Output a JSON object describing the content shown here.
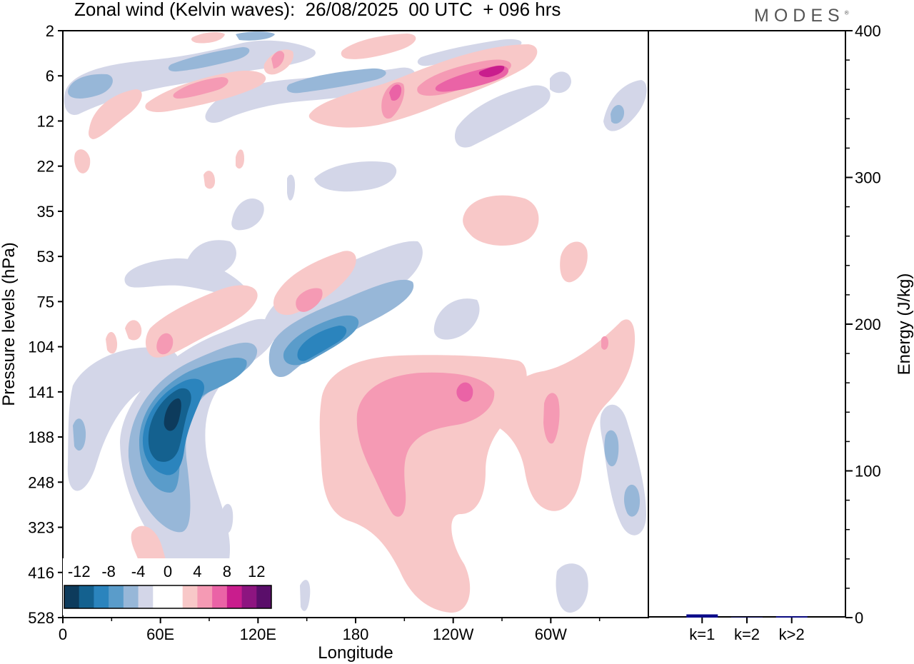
{
  "title": "Zonal wind (Kelvin waves):  26/08/2025  00 UTC  + 096 hrs",
  "brand": "MODES",
  "brand_mark": "®",
  "chart_data": [
    {
      "type": "heatmap",
      "name": "zonal-wind-kelvin-waves",
      "xlabel": "Longitude",
      "ylabel": "Pressure levels (hPa)",
      "x_ticks": [
        "0",
        "60E",
        "120E",
        "180",
        "120W",
        "60W"
      ],
      "x_tick_degrees": [
        0,
        60,
        120,
        180,
        240,
        300
      ],
      "xlim": [
        0,
        360
      ],
      "y_ticks": [
        "2",
        "6",
        "12",
        "22",
        "35",
        "53",
        "75",
        "104",
        "141",
        "188",
        "248",
        "323",
        "416",
        "528"
      ],
      "colorbar": {
        "labels": [
          "-12",
          "-8",
          "-4",
          "0",
          "4",
          "8",
          "12"
        ],
        "levels": [
          -14,
          -12,
          -10,
          -8,
          -6,
          -4,
          -2,
          0,
          2,
          4,
          6,
          8,
          10,
          12,
          14
        ],
        "colors": [
          "#0d3b5c",
          "#14618f",
          "#2b84bd",
          "#5a9cca",
          "#97b7d8",
          "#d3d6e8",
          "#ffffff",
          "#ffffff",
          "#f8c8c8",
          "#f59ab4",
          "#ea63a6",
          "#c91d8d",
          "#8d1580",
          "#5a0e6a"
        ]
      },
      "features": [
        {
          "sign": "negative",
          "peak": -13,
          "center_lon": 68,
          "center_hpa": 165,
          "description": "strong easterly core"
        },
        {
          "sign": "negative",
          "peak": -6,
          "center_lon": 150,
          "center_hpa": 95
        },
        {
          "sign": "positive",
          "peak": 6,
          "center_lon": 210,
          "center_hpa": 170
        },
        {
          "sign": "positive",
          "peak": 8,
          "center_lon": 265,
          "center_hpa": 6
        },
        {
          "sign": "positive",
          "peak": 6,
          "center_lon": 150,
          "center_hpa": 75
        },
        {
          "sign": "negative",
          "peak": -6,
          "center_lon": 320,
          "center_hpa": 230
        }
      ]
    },
    {
      "type": "bar",
      "name": "energy-by-wavenumber",
      "categories": [
        "k=1",
        "k=2",
        "k>2"
      ],
      "values": [
        2.2,
        0.3,
        0.9
      ],
      "ylabel": "Energy (J/kg)",
      "ylim": [
        0,
        400
      ],
      "y_ticks": [
        "0",
        "100",
        "200",
        "300",
        "400"
      ],
      "y_tick_values": [
        0,
        100,
        200,
        300,
        400
      ],
      "bar_color": "#0b0b8a"
    }
  ]
}
